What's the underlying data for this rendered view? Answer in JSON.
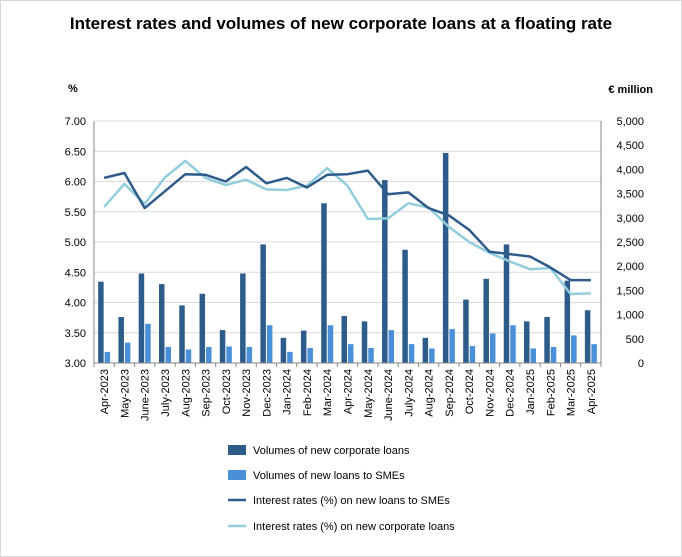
{
  "chart_data": {
    "type": "bar+line",
    "title": "Interest rates and volumes of new corporate loans at a  floating rate",
    "ylabel_left": "%",
    "ylabel_right": "€ million",
    "ylim_left": [
      3.0,
      7.0
    ],
    "ylim_right": [
      0,
      5000
    ],
    "yticks_left": [
      "7.00",
      "6.50",
      "6.00",
      "5.50",
      "5.00",
      "4.50",
      "4.00",
      "3.50",
      "3.00"
    ],
    "yticks_right": [
      "5,000",
      "4,500",
      "4,000",
      "3,500",
      "3,000",
      "2,500",
      "2,000",
      "1,500",
      "1,000",
      "500",
      "0"
    ],
    "categories": [
      "Apr-2023",
      "May-2023",
      "June-2023",
      "July-2023",
      "Aug-2023",
      "Sep-2023",
      "Oct-2023",
      "Nov-2023",
      "Dec-2023",
      "Jan-2024",
      "Feb-2024",
      "Mar-2024",
      "Apr-2024",
      "May-2024",
      "June-2024",
      "July-2024",
      "Aug-2024",
      "Sep-2024",
      "Oct-2024",
      "Nov-2024",
      "Dec-2024",
      "Jan-2025",
      "Feb-2025",
      "Mar-2025",
      "Apr-2025"
    ],
    "grid": true,
    "legend_position": "bottom",
    "series": [
      {
        "name": "Volumes of new corporate loans",
        "kind": "bar",
        "axis": "right",
        "color": "#2e5c8a",
        "values": [
          1680,
          950,
          1850,
          1630,
          1190,
          1430,
          680,
          1850,
          2450,
          520,
          670,
          3300,
          970,
          860,
          3780,
          2340,
          520,
          4340,
          1310,
          1740,
          2450,
          860,
          950,
          1700,
          1090
        ]
      },
      {
        "name": "Volumes of new loans to SMEs",
        "kind": "bar",
        "axis": "right",
        "color": "#4a90d9",
        "values": [
          230,
          420,
          810,
          330,
          280,
          330,
          340,
          330,
          780,
          230,
          310,
          780,
          390,
          310,
          680,
          390,
          300,
          700,
          350,
          610,
          780,
          300,
          330,
          570,
          390
        ]
      },
      {
        "name": "Interest rates (%) on new loans to SMEs",
        "kind": "line",
        "axis": "left",
        "color": "#2e5c8a",
        "values": [
          6.06,
          6.14,
          5.56,
          5.84,
          6.12,
          6.11,
          6.0,
          6.24,
          5.97,
          6.06,
          5.9,
          6.11,
          6.12,
          6.18,
          5.79,
          5.82,
          5.56,
          5.44,
          5.2,
          4.84,
          4.8,
          4.76,
          4.58,
          4.37,
          4.37
        ]
      },
      {
        "name": "Interest rates (%) on new corporate loans",
        "kind": "line",
        "axis": "left",
        "color": "#92cddc",
        "values": [
          5.58,
          5.96,
          5.63,
          6.07,
          6.34,
          6.06,
          5.94,
          6.03,
          5.87,
          5.86,
          5.93,
          6.22,
          5.93,
          5.38,
          5.39,
          5.64,
          5.57,
          5.25,
          5.0,
          4.82,
          4.68,
          4.55,
          4.57,
          4.14,
          4.15
        ]
      }
    ]
  }
}
